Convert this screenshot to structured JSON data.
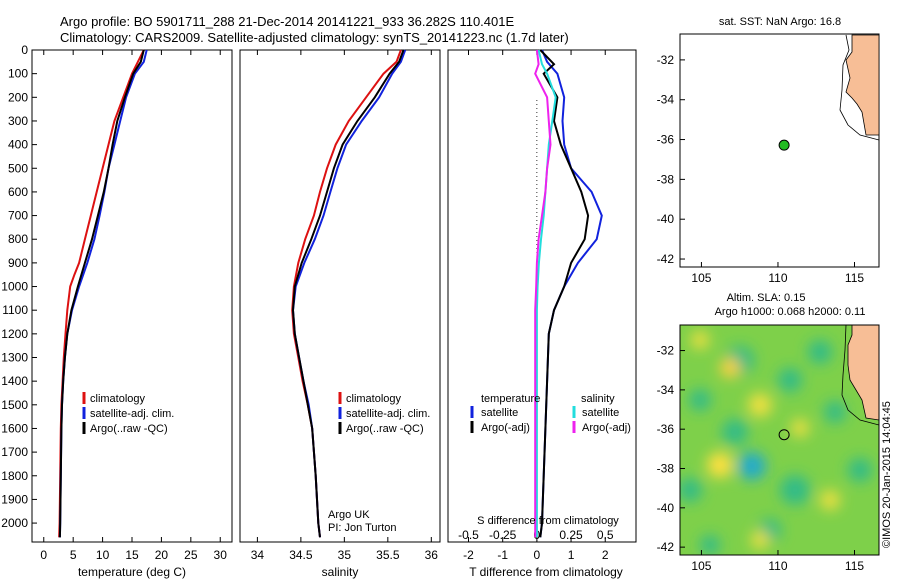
{
  "title_line1": "Argo profile: BO 5901711_288 21-Dec-2014 20141221_933 36.282S 110.401E",
  "title_line2": "Climatology: CARS2009. Satellite-adjusted climatology: synTS_20141223.nc (1.7d later)",
  "colors": {
    "climatology": "#dd1111",
    "satellite": "#1122dd",
    "argo": "#000000",
    "satellite_salinity": "#22dddd",
    "argo_salinity": "#ee22ee",
    "land": "#f7be96"
  },
  "legend": {
    "climatology": "climatology",
    "satellite_adj": "satellite-adj. clim.",
    "argo": "Argo(..raw -QC)"
  },
  "legend3": {
    "temperature": "temperature",
    "salinity": "salinity",
    "satellite": "satellite",
    "argo_adj": "Argo(-adj)"
  },
  "float_info": {
    "line1": "Argo UK",
    "line2": "PI: Jon Turton"
  },
  "watermark": "©IMOS 20-Jan-2015 14:04:45",
  "map1": {
    "title": "sat. SST: NaN Argo: 16.8"
  },
  "map2": {
    "title1": "Altim. SLA: 0.15",
    "title2": "Argo h1000: 0.068 h2000: 0.11"
  },
  "chart_data": [
    {
      "type": "line",
      "xlabel": "temperature (deg C)",
      "xticks": [
        "0",
        "5",
        "10",
        "15",
        "20",
        "25",
        "30"
      ],
      "yticks": [
        "0",
        "100",
        "200",
        "300",
        "400",
        "500",
        "600",
        "700",
        "800",
        "900",
        "1000",
        "1100",
        "1200",
        "1300",
        "1400",
        "1500",
        "1600",
        "1700",
        "1800",
        "1900",
        "2000"
      ],
      "xlim": [
        -2,
        32
      ],
      "ylim": [
        2080,
        0
      ],
      "series": [
        {
          "name": "climatology",
          "color": "#dd1111",
          "x": [
            17,
            16,
            15,
            13.5,
            12,
            11,
            10,
            9,
            8,
            7,
            6,
            5.2,
            4.5,
            4,
            3.7,
            3.4,
            3.2,
            3.0,
            2.9,
            2.8,
            2.7,
            2.6
          ],
          "y": [
            0,
            50,
            100,
            200,
            300,
            400,
            500,
            600,
            700,
            800,
            900,
            950,
            1000,
            1100,
            1200,
            1300,
            1400,
            1500,
            1600,
            1800,
            2000,
            2060
          ]
        },
        {
          "name": "satellite-adj. clim.",
          "color": "#1122dd",
          "x": [
            17.5,
            17,
            15.5,
            14,
            13,
            12,
            11,
            10.3,
            9.5,
            8.6,
            7.4,
            6,
            4.8,
            4,
            3.6,
            3.3,
            3.1,
            3.0,
            2.9,
            2.8,
            2.75
          ],
          "y": [
            0,
            50,
            100,
            200,
            300,
            400,
            500,
            600,
            700,
            800,
            900,
            1000,
            1100,
            1200,
            1300,
            1400,
            1500,
            1600,
            1800,
            2000,
            2060
          ]
        },
        {
          "name": "Argo(..raw -QC)",
          "color": "#000000",
          "x": [
            17,
            16.5,
            15.2,
            13.8,
            12.5,
            11.7,
            11,
            10.2,
            9.2,
            8.2,
            7,
            5.8,
            4.7,
            4,
            3.6,
            3.3,
            3.1,
            3.0,
            2.9,
            2.8,
            2.75
          ],
          "y": [
            0,
            50,
            100,
            200,
            300,
            400,
            500,
            600,
            700,
            800,
            900,
            1000,
            1100,
            1200,
            1300,
            1400,
            1500,
            1600,
            1800,
            2000,
            2060
          ]
        }
      ]
    },
    {
      "type": "line",
      "xlabel": "salinity",
      "xticks": [
        "34",
        "34.5",
        "35",
        "35.5",
        "36"
      ],
      "yticks": [],
      "xlim": [
        33.8,
        36.1
      ],
      "ylim": [
        2080,
        0
      ],
      "series": [
        {
          "name": "climatology",
          "color": "#dd1111",
          "x": [
            35.65,
            35.6,
            35.45,
            35.25,
            35.05,
            34.9,
            34.8,
            34.72,
            34.65,
            34.55,
            34.47,
            34.42,
            34.4,
            34.42,
            34.47,
            34.52,
            34.58,
            34.63,
            34.67,
            34.7,
            34.72
          ],
          "y": [
            0,
            50,
            100,
            200,
            300,
            400,
            500,
            600,
            700,
            800,
            900,
            1000,
            1100,
            1200,
            1300,
            1400,
            1500,
            1600,
            1800,
            2000,
            2060
          ]
        },
        {
          "name": "satellite-adj. clim.",
          "color": "#1122dd",
          "x": [
            35.7,
            35.65,
            35.55,
            35.4,
            35.2,
            35.02,
            34.92,
            34.84,
            34.76,
            34.66,
            34.54,
            34.44,
            34.41,
            34.43,
            34.48,
            34.53,
            34.59,
            34.63,
            34.67,
            34.7,
            34.72
          ],
          "y": [
            0,
            50,
            100,
            200,
            300,
            400,
            500,
            600,
            700,
            800,
            900,
            1000,
            1100,
            1200,
            1300,
            1400,
            1500,
            1600,
            1800,
            2000,
            2060
          ]
        },
        {
          "name": "Argo(..raw -QC)",
          "color": "#000000",
          "x": [
            35.68,
            35.63,
            35.52,
            35.35,
            35.15,
            34.98,
            34.88,
            34.8,
            34.72,
            34.62,
            34.51,
            34.43,
            34.41,
            34.43,
            34.48,
            34.53,
            34.58,
            34.63,
            34.67,
            34.7,
            34.72
          ],
          "y": [
            0,
            50,
            100,
            200,
            300,
            400,
            500,
            600,
            700,
            800,
            900,
            1000,
            1100,
            1200,
            1300,
            1400,
            1500,
            1600,
            1800,
            2000,
            2060
          ]
        }
      ]
    },
    {
      "type": "line",
      "xlabel": "T difference from climatology",
      "xticks": [
        "-2",
        "-1",
        "0",
        "1",
        "2"
      ],
      "x2label": "S difference from climatology",
      "x2ticks": [
        "-0.5",
        "-0.25",
        "0",
        "0.25",
        "0.5"
      ],
      "yticks": [],
      "xlim": [
        -2.6,
        2.9
      ],
      "ylim": [
        2080,
        0
      ],
      "series": [
        {
          "name": "temperature satellite",
          "color": "#1122dd",
          "x": [
            0.15,
            0.3,
            0.6,
            0.8,
            0.75,
            0.8,
            1.0,
            1.6,
            1.9,
            1.75,
            1.2,
            0.8,
            0.5,
            0.35,
            0.3,
            0.25,
            0.2,
            0.15,
            0.1
          ],
          "y": [
            0,
            50,
            100,
            200,
            300,
            400,
            500,
            600,
            700,
            800,
            900,
            1000,
            1100,
            1200,
            1400,
            1600,
            1800,
            2000,
            2060
          ]
        },
        {
          "name": "temperature Argo(-adj)",
          "color": "#000000",
          "x": [
            0.1,
            0.5,
            0.2,
            0.6,
            0.5,
            0.7,
            1.0,
            1.3,
            1.5,
            1.4,
            1.0,
            0.8,
            0.5,
            0.35,
            0.3,
            0.25,
            0.2,
            0.15,
            0.1
          ],
          "y": [
            0,
            60,
            100,
            200,
            300,
            400,
            500,
            600,
            700,
            800,
            900,
            1000,
            1100,
            1200,
            1400,
            1600,
            1800,
            2000,
            2060
          ]
        },
        {
          "name": "salinity satellite",
          "color": "#22dddd",
          "x": [
            0.05,
            0.15,
            0.3,
            0.55,
            0.45,
            0.35,
            0.3,
            0.25,
            0.2,
            0.12,
            0.06,
            0.02,
            0.0,
            0.0,
            0.0,
            0.0,
            0.0,
            0.0,
            0.0
          ],
          "y": [
            0,
            60,
            100,
            200,
            300,
            400,
            500,
            600,
            700,
            800,
            900,
            1000,
            1100,
            1200,
            1400,
            1600,
            1800,
            2000,
            2060
          ]
        },
        {
          "name": "salinity Argo(-adj)",
          "color": "#ee22ee",
          "x": [
            0.0,
            0.05,
            -0.05,
            0.3,
            0.35,
            0.4,
            0.3,
            0.25,
            0.15,
            0.05,
            0.0,
            -0.02,
            -0.05,
            -0.05,
            -0.05,
            -0.05,
            -0.05,
            -0.05,
            -0.05
          ],
          "y": [
            0,
            60,
            100,
            200,
            300,
            400,
            500,
            600,
            700,
            800,
            900,
            1000,
            1100,
            1200,
            1400,
            1600,
            1800,
            2000,
            2060
          ]
        }
      ]
    },
    {
      "type": "scatter",
      "title": "sat. SST: NaN Argo: 16.8",
      "xticks": [
        "105",
        "110",
        "115"
      ],
      "yticks": [
        "-32",
        "-34",
        "-36",
        "-38",
        "-40",
        "-42"
      ],
      "xlim": [
        103.6,
        116.6
      ],
      "ylim": [
        -42.4,
        -30.7
      ],
      "points": [
        {
          "lon": 110.401,
          "lat": -36.282
        }
      ]
    },
    {
      "type": "heatmap",
      "title": "Altim. SLA: 0.15 / Argo h1000: 0.068 h2000: 0.11",
      "xticks": [
        "105",
        "110",
        "115"
      ],
      "yticks": [
        "-32",
        "-34",
        "-36",
        "-38",
        "-40",
        "-42"
      ],
      "xlim": [
        103.6,
        116.6
      ],
      "ylim": [
        -42.4,
        -30.7
      ],
      "points": [
        {
          "lon": 110.401,
          "lat": -36.282
        }
      ]
    }
  ]
}
